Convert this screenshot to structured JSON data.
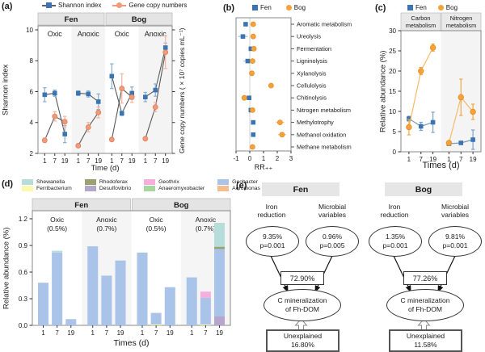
{
  "panels": {
    "a": {
      "label": "(a)",
      "xlabel": "Time (d)",
      "ylabel_left": "Shannon index",
      "ylabel_right": "Gene copy numbers (×10⁷ copies mL⁻¹)"
    },
    "b": {
      "label": "(b)",
      "xlabel": "RR₊₊",
      "legend": {
        "fen": "Fen",
        "bog": "Bog"
      }
    },
    "c": {
      "label": "(c)",
      "xlabel": "Times (d)",
      "ylabel": "Relative abundance (%)",
      "legend": {
        "fen": "Fen",
        "bog": "Bog"
      }
    },
    "d": {
      "label": "(d)",
      "xlabel": "Times (d)",
      "ylabel": "Relative abundance (%)"
    },
    "e": {
      "label": "(e)",
      "diagrams": [
        {
          "header": "Fen",
          "predictors": [
            {
              "label": "Iron\nreduction",
              "value": "9.35%",
              "p": "p=0.001"
            },
            {
              "label": "Microbial\nvariables",
              "value": "0.96%",
              "p": "p=0.005"
            }
          ],
          "explained": "72.90%",
          "outcome": "C mineralization\nof Fh-DOM",
          "unexplained_label": "Unexplained",
          "unexplained_value": "16.80%"
        },
        {
          "header": "Bog",
          "predictors": [
            {
              "label": "Iron\nreduction",
              "value": "1.35%",
              "p": "p=0.001"
            },
            {
              "label": "Microbial\nvariables",
              "value": "9.81%",
              "p": "p=0.001"
            }
          ],
          "explained": "77.26%",
          "outcome": "C mineralization\nof Fh-DOM",
          "unexplained_label": "Unexplained",
          "unexplained_value": "11.58%"
        }
      ]
    }
  },
  "colors": {
    "fen_blue": "#3b74b0",
    "bog_orange": "#f6a23c",
    "gene_salmon": "#f09a7c",
    "line_gray": "#595959",
    "band_gray": "#e4e4e4",
    "shade_gray": "#f4f4f4"
  },
  "chart_data": [
    {
      "panel": "a",
      "type": "line",
      "group_headers": [
        "Fen",
        "Bog"
      ],
      "sub_headers": [
        "Oxic",
        "Anoxic",
        "Oxic",
        "Anoxic"
      ],
      "x_ticks": [
        "1",
        "7",
        "19"
      ],
      "yticks": [
        2,
        4,
        6,
        8,
        10
      ],
      "ylim": [
        2,
        10
      ],
      "xlabel": "Time (d)",
      "ylabel_left": "Shannon index",
      "ylabel_right": "Gene copy numbers (×10⁷ copies mL⁻¹)",
      "series": [
        {
          "name": "Shannon index",
          "marker": "square",
          "color": "#3b74b0",
          "err_color": "#85aed3",
          "values": [
            [
              5.8,
              5.9,
              3.25
            ],
            [
              5.9,
              5.85,
              5.35
            ],
            [
              7.0,
              4.6,
              5.9
            ],
            [
              5.65,
              6.1,
              8.85
            ]
          ],
          "errors": [
            [
              0.45,
              0.2,
              0.55
            ],
            [
              0.15,
              0.2,
              0.5
            ],
            [
              0.8,
              0.15,
              0.4
            ],
            [
              0.3,
              0.4,
              0.3
            ]
          ]
        },
        {
          "name": "Gene copy numbers",
          "marker": "circle",
          "color": "#f09a7c",
          "edge": "#e07e5c",
          "err_color": "#f5b49e",
          "values": [
            [
              2.85,
              4.4,
              4.05
            ],
            [
              2.5,
              3.7,
              4.65
            ],
            [
              2.9,
              6.2,
              5.65
            ],
            [
              2.95,
              5.0,
              8.55
            ]
          ],
          "errors": [
            [
              0.15,
              0.3,
              0.35
            ],
            [
              0.1,
              0.3,
              0.35
            ],
            [
              0.1,
              0.95,
              0.35
            ],
            [
              0.1,
              0.3,
              1.05
            ]
          ]
        }
      ]
    },
    {
      "panel": "b",
      "type": "dot",
      "xlabel": "RR₊₊",
      "xticks": [
        -1,
        0,
        1,
        2,
        3
      ],
      "xlim": [
        -1,
        3
      ],
      "categories": [
        "Aromatic metabolism",
        "Ureolysis",
        "Fermentation",
        "Ligninolysis",
        "Xylanolysis",
        "Cellulolysis",
        "Chitinolysis",
        "Nitrogen metabolism",
        "Methylotrophy",
        "Methanol oxidation",
        "Methane metabolism"
      ],
      "fen": {
        "name": "Fen",
        "color": "#3b74b0",
        "err_color": "#9dbbdb",
        "values": [
          -0.3,
          -0.5,
          0.08,
          -0.15,
          null,
          null,
          -0.05,
          0.08,
          0.25,
          0.25,
          null
        ],
        "errors": [
          0.15,
          0.35,
          0,
          0.3,
          0,
          0,
          0,
          0,
          0,
          0,
          0
        ]
      },
      "bog": {
        "name": "Bog",
        "color": "#f6a23c",
        "edge": "#e48f20",
        "err_color": "#f7bf7f",
        "values": [
          0.25,
          0.25,
          0.3,
          0.2,
          0.15,
          1.55,
          -0.4,
          0.2,
          2.2,
          2.35,
          0.2
        ],
        "errors": [
          0,
          0,
          0,
          0,
          0,
          0,
          0.1,
          0,
          0.3,
          0.3,
          0
        ]
      }
    },
    {
      "panel": "c",
      "type": "line",
      "section_headers": [
        "Carbon\nmetabolism",
        "Nitrogen\nmetabolism"
      ],
      "x_ticks": [
        "1",
        "7",
        "19"
      ],
      "yticks": [
        0,
        5,
        10,
        15,
        20,
        25,
        30
      ],
      "ylim": [
        0,
        30
      ],
      "xlabel": "Times (d)",
      "ylabel": "Relative abundance (%)",
      "series": [
        {
          "name": "Fen",
          "marker": "square",
          "color": "#3b74b0",
          "line_color": "#7d99bb",
          "err_color": "#7ba3cc",
          "values": [
            [
              8.2,
              6.3,
              7.3
            ],
            [
              2.0,
              2.2,
              3.0
            ]
          ],
          "errors": [
            [
              0.6,
              1.0,
              2.5
            ],
            [
              0.4,
              0.3,
              2.4
            ]
          ]
        },
        {
          "name": "Bog",
          "marker": "circle",
          "color": "#f6a23c",
          "edge": "#e48f20",
          "line_color": "#f8b968",
          "err_color": "#f0a847",
          "values": [
            [
              6.1,
              20.0,
              25.8
            ],
            [
              2.2,
              13.5,
              9.9
            ]
          ],
          "errors": [
            [
              1.9,
              0.9,
              0.9
            ],
            [
              0.4,
              4.5,
              1.9
            ]
          ]
        }
      ]
    },
    {
      "panel": "d",
      "type": "stacked-bar",
      "group_headers": [
        "Fen",
        "Bog"
      ],
      "x_ticks": [
        "1",
        "7",
        "19"
      ],
      "yticks": [
        0.0,
        0.3,
        0.6,
        0.9,
        1.2
      ],
      "ylim": [
        0,
        1.2
      ],
      "xlabel": "Times (d)",
      "ylabel": "Relative abundance (%)",
      "taxa": [
        {
          "name": "Shewanella",
          "color": "#b7ddda"
        },
        {
          "name": "Ferribacterium",
          "color": "#fbf9af"
        },
        {
          "name": "Rhodoferax",
          "color": "#9aa06e"
        },
        {
          "name": "Desulfovibrio",
          "color": "#b5a7cc"
        },
        {
          "name": "Geothrix",
          "color": "#f7aede"
        },
        {
          "name": "Anaeromyxobacter",
          "color": "#a6d79e"
        },
        {
          "name": "Geobacter",
          "color": "#a9c3e9"
        },
        {
          "name": "Aeromonas",
          "color": "#f3bd8e"
        }
      ],
      "groups": [
        {
          "header": {
            "title": "Oxic",
            "pct": "(0.5%)"
          },
          "bars": [
            [
              [
                "Geobacter",
                0.48
              ]
            ],
            [
              [
                "Geobacter",
                0.82
              ],
              [
                "Shewanella",
                0.02
              ]
            ],
            [
              [
                "Geobacter",
                0.07
              ]
            ]
          ]
        },
        {
          "header": {
            "title": "Anoxic",
            "pct": "(0.7%)"
          },
          "bars": [
            [
              [
                "Geobacter",
                0.89
              ]
            ],
            [
              [
                "Geobacter",
                0.56
              ]
            ],
            [
              [
                "Geobacter",
                0.73
              ]
            ]
          ]
        },
        {
          "header": {
            "title": "Oxic",
            "pct": "(0.5%)"
          },
          "bars": [
            [
              [
                "Geobacter",
                0.82
              ]
            ],
            [
              [
                "Ferribacterium",
                0.01
              ],
              [
                "Geobacter",
                0.13
              ]
            ],
            [
              [
                "Geobacter",
                0.43
              ]
            ]
          ]
        },
        {
          "header": {
            "title": "Anoxic",
            "pct": "(0.7%)"
          },
          "bars": [
            [
              [
                "Geobacter",
                0.54
              ]
            ],
            [
              [
                "Ferribacterium",
                0.01
              ],
              [
                "Geobacter",
                0.3
              ],
              [
                "Geothrix",
                0.07
              ]
            ],
            [
              [
                "Desulfovibrio",
                0.1
              ],
              [
                "Geobacter",
                0.76
              ],
              [
                "Rhodoferax",
                0.025
              ],
              [
                "Shewanella",
                0.27
              ]
            ]
          ]
        }
      ]
    }
  ]
}
